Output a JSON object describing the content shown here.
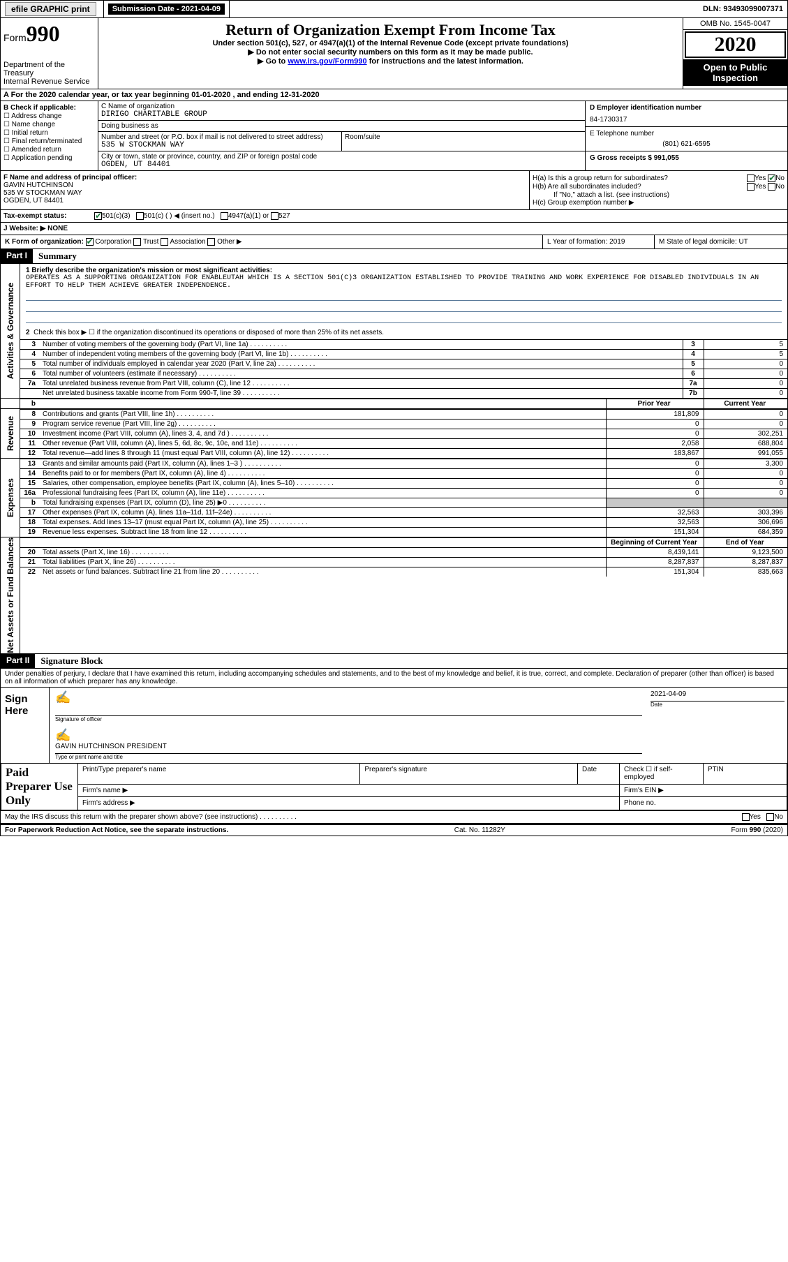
{
  "topbar": {
    "efile_label": "efile GRAPHIC print",
    "submission_label": "Submission Date - 2021-04-09",
    "dln": "DLN: 93493099007371"
  },
  "header": {
    "form_prefix": "Form",
    "form_num": "990",
    "dept1": "Department of the Treasury",
    "dept2": "Internal Revenue Service",
    "title": "Return of Organization Exempt From Income Tax",
    "subtitle": "Under section 501(c), 527, or 4947(a)(1) of the Internal Revenue Code (except private foundations)",
    "warn1": "▶ Do not enter social security numbers on this form as it may be made public.",
    "warn2_pre": "▶ Go to ",
    "warn2_link": "www.irs.gov/Form990",
    "warn2_post": " for instructions and the latest information.",
    "omb": "OMB No. 1545-0047",
    "year": "2020",
    "open": "Open to Public Inspection"
  },
  "row_a": "A For the 2020 calendar year, or tax year beginning 01-01-2020    , and ending 12-31-2020",
  "col_b": {
    "title": "B Check if applicable:",
    "opts": [
      "Address change",
      "Name change",
      "Initial return",
      "Final return/terminated",
      "Amended return",
      "Application pending"
    ]
  },
  "c": {
    "name_lbl": "C Name of organization",
    "name": "DIRIGO CHARITABLE GROUP",
    "dba_lbl": "Doing business as",
    "dba": "",
    "addr_lbl": "Number and street (or P.O. box if mail is not delivered to street address)",
    "room_lbl": "Room/suite",
    "addr": "535 W STOCKMAN WAY",
    "city_lbl": "City or town, state or province, country, and ZIP or foreign postal code",
    "city": "OGDEN, UT  84401"
  },
  "d": {
    "lbl": "D Employer identification number",
    "val": "84-1730317"
  },
  "e": {
    "lbl": "E Telephone number",
    "val": "(801) 621-6595"
  },
  "g": {
    "lbl": "G Gross receipts $ 991,055"
  },
  "f": {
    "lbl": "F  Name and address of principal officer:",
    "name": "GAVIN HUTCHINSON",
    "addr1": "535 W STOCKMAN WAY",
    "addr2": "OGDEN, UT  84401"
  },
  "h": {
    "a": "H(a)  Is this a group return for subordinates?",
    "a_yes": "Yes",
    "a_no": "No",
    "b": "H(b)  Are all subordinates included?",
    "b_yes": "Yes",
    "b_no": "No",
    "b_note": "If \"No,\" attach a list. (see instructions)",
    "c": "H(c)  Group exemption number ▶"
  },
  "i": {
    "lbl": "Tax-exempt status:",
    "o1": "501(c)(3)",
    "o2": "501(c) (  ) ◀ (insert no.)",
    "o3": "4947(a)(1) or",
    "o4": "527"
  },
  "j": {
    "lbl": "J   Website: ▶",
    "val": "NONE"
  },
  "k": {
    "lbl": "K Form of organization:",
    "o1": "Corporation",
    "o2": "Trust",
    "o3": "Association",
    "o4": "Other ▶"
  },
  "l": {
    "lbl": "L Year of formation: 2019"
  },
  "m": {
    "lbl": "M State of legal domicile: UT"
  },
  "part1": {
    "hdr": "Part I",
    "title": "Summary",
    "side1": "Activities & Governance",
    "line1_lbl": "1  Briefly describe the organization's mission or most significant activities:",
    "line1_text": "OPERATES AS A SUPPORTING ORGANIZATION FOR ENABLEUTAH WHICH IS A SECTION 501(C)3 ORGANIZATION ESTABLISHED TO PROVIDE TRAINING AND WORK EXPERIENCE FOR DISABLED INDIVIDUALS IN AN EFFORT TO HELP THEM ACHIEVE GREATER INDEPENDENCE.",
    "line2": "Check this box ▶ ☐  if the organization discontinued its operations or disposed of more than 25% of its net assets.",
    "rows_ag": [
      {
        "n": "3",
        "d": "Number of voting members of the governing body (Part VI, line 1a)",
        "box": "3",
        "v": "5"
      },
      {
        "n": "4",
        "d": "Number of independent voting members of the governing body (Part VI, line 1b)",
        "box": "4",
        "v": "5"
      },
      {
        "n": "5",
        "d": "Total number of individuals employed in calendar year 2020 (Part V, line 2a)",
        "box": "5",
        "v": "0"
      },
      {
        "n": "6",
        "d": "Total number of volunteers (estimate if necessary)",
        "box": "6",
        "v": "0"
      },
      {
        "n": "7a",
        "d": "Total unrelated business revenue from Part VIII, column (C), line 12",
        "box": "7a",
        "v": "0"
      },
      {
        "n": "",
        "d": "Net unrelated business taxable income from Form 990-T, line 39",
        "box": "7b",
        "v": "0"
      }
    ],
    "py_hdr": "Prior Year",
    "cy_hdr": "Current Year",
    "side2": "Revenue",
    "rows_rev": [
      {
        "n": "8",
        "d": "Contributions and grants (Part VIII, line 1h)",
        "py": "181,809",
        "cy": "0"
      },
      {
        "n": "9",
        "d": "Program service revenue (Part VIII, line 2g)",
        "py": "0",
        "cy": "0"
      },
      {
        "n": "10",
        "d": "Investment income (Part VIII, column (A), lines 3, 4, and 7d )",
        "py": "0",
        "cy": "302,251"
      },
      {
        "n": "11",
        "d": "Other revenue (Part VIII, column (A), lines 5, 6d, 8c, 9c, 10c, and 11e)",
        "py": "2,058",
        "cy": "688,804"
      },
      {
        "n": "12",
        "d": "Total revenue—add lines 8 through 11 (must equal Part VIII, column (A), line 12)",
        "py": "183,867",
        "cy": "991,055"
      }
    ],
    "side3": "Expenses",
    "rows_exp": [
      {
        "n": "13",
        "d": "Grants and similar amounts paid (Part IX, column (A), lines 1–3 )",
        "py": "0",
        "cy": "3,300"
      },
      {
        "n": "14",
        "d": "Benefits paid to or for members (Part IX, column (A), line 4)",
        "py": "0",
        "cy": "0"
      },
      {
        "n": "15",
        "d": "Salaries, other compensation, employee benefits (Part IX, column (A), lines 5–10)",
        "py": "0",
        "cy": "0"
      },
      {
        "n": "16a",
        "d": "Professional fundraising fees (Part IX, column (A), line 11e)",
        "py": "0",
        "cy": "0"
      },
      {
        "n": "b",
        "d": "Total fundraising expenses (Part IX, column (D), line 25) ▶0",
        "py": "",
        "cy": "",
        "gray": true
      },
      {
        "n": "17",
        "d": "Other expenses (Part IX, column (A), lines 11a–11d, 11f–24e)",
        "py": "32,563",
        "cy": "303,396"
      },
      {
        "n": "18",
        "d": "Total expenses. Add lines 13–17 (must equal Part IX, column (A), line 25)",
        "py": "32,563",
        "cy": "306,696"
      },
      {
        "n": "19",
        "d": "Revenue less expenses. Subtract line 18 from line 12",
        "py": "151,304",
        "cy": "684,359"
      }
    ],
    "bcy_hdr": "Beginning of Current Year",
    "ey_hdr": "End of Year",
    "side4": "Net Assets or Fund Balances",
    "rows_na": [
      {
        "n": "20",
        "d": "Total assets (Part X, line 16)",
        "py": "8,439,141",
        "cy": "9,123,500"
      },
      {
        "n": "21",
        "d": "Total liabilities (Part X, line 26)",
        "py": "8,287,837",
        "cy": "8,287,837"
      },
      {
        "n": "22",
        "d": "Net assets or fund balances. Subtract line 21 from line 20",
        "py": "151,304",
        "cy": "835,663"
      }
    ]
  },
  "part2": {
    "hdr": "Part II",
    "title": "Signature Block",
    "intro": "Under penalties of perjury, I declare that I have examined this return, including accompanying schedules and statements, and to the best of my knowledge and belief, it is true, correct, and complete. Declaration of preparer (other than officer) is based on all information of which preparer has any knowledge.",
    "sign_here": "Sign Here",
    "sig_officer_lbl": "Signature of officer",
    "date_lbl": "Date",
    "date_val": "2021-04-09",
    "name_title": "GAVIN HUTCHINSON  PRESIDENT",
    "name_title_lbl": "Type or print name and title",
    "paid": "Paid Preparer Use Only",
    "p_name_lbl": "Print/Type preparer's name",
    "p_sig_lbl": "Preparer's signature",
    "p_date_lbl": "Date",
    "p_check_lbl": "Check ☐ if self-employed",
    "p_ptin_lbl": "PTIN",
    "firm_name": "Firm's name   ▶",
    "firm_ein": "Firm's EIN ▶",
    "firm_addr": "Firm's address ▶",
    "phone": "Phone no.",
    "may": "May the IRS discuss this return with the preparer shown above? (see instructions)   .   .   .   .   .   .   .   .   .   .",
    "may_yes": "Yes",
    "may_no": "No"
  },
  "footer": {
    "left": "For Paperwork Reduction Act Notice, see the separate instructions.",
    "mid": "Cat. No. 11282Y",
    "right": "Form 990 (2020)"
  }
}
